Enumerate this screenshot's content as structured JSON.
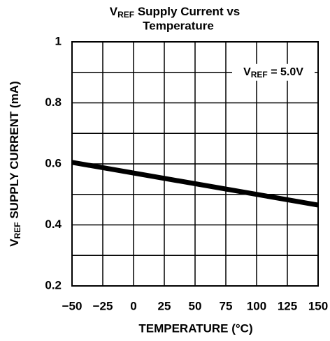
{
  "chart_data": {
    "type": "line",
    "title": {
      "v": "V",
      "sub": "REF",
      "rest": " Supply Current vs",
      "line2": "Temperature"
    },
    "xlabel": "TEMPERATURE (°C)",
    "ylabel": {
      "v": "V",
      "sub": "REF",
      "rest": " SUPPLY CURRENT (mA)"
    },
    "annotation": {
      "v": "V",
      "sub": "REF",
      "rest": " = 5.0V"
    },
    "x": [
      -50,
      150
    ],
    "series": [
      {
        "color": "#000000",
        "values": [
          0.605,
          0.465
        ]
      }
    ],
    "xlim": [
      -50,
      150
    ],
    "ylim": [
      0.2,
      1
    ],
    "xticks": [
      {
        "value": -50,
        "label": "−50"
      },
      {
        "value": -25,
        "label": "−25"
      },
      0,
      25,
      50,
      75,
      100,
      125,
      150
    ],
    "yticks": [
      {
        "value": 0.2,
        "label": "0.2"
      },
      {
        "value": 0.4,
        "label": "0.4"
      },
      {
        "value": 0.6,
        "label": "0.6"
      },
      {
        "value": 0.8,
        "label": "0.8"
      },
      1
    ],
    "minor_yticks": [
      0.3,
      0.5,
      0.7,
      0.9
    ],
    "grid": true
  }
}
